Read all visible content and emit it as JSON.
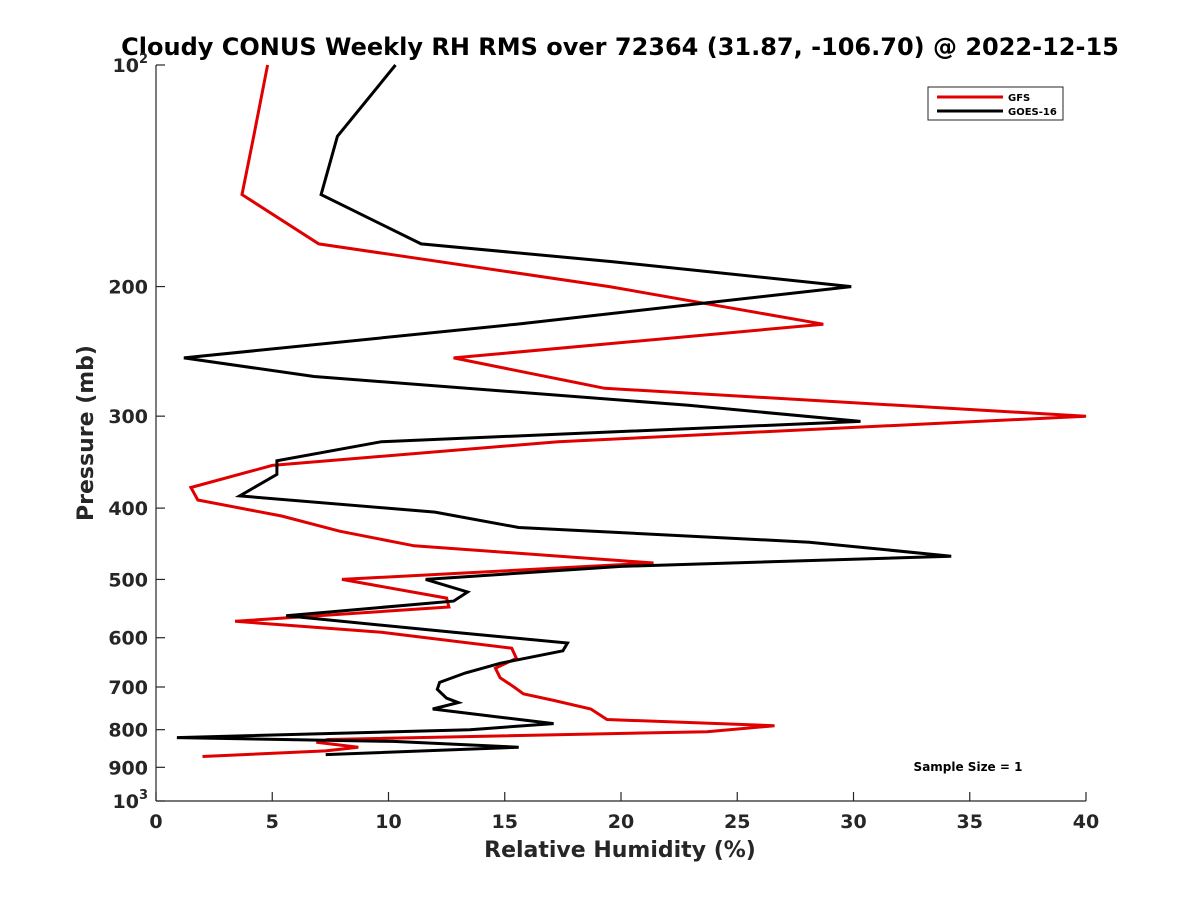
{
  "chart_data": {
    "type": "line",
    "title": "Cloudy CONUS Weekly RH RMS over 72364 (31.87, -106.70) @ 2022-12-15",
    "xlabel": "Relative Humidity (%)",
    "ylabel": "Pressure (mb)",
    "xlim": [
      0,
      40
    ],
    "ylim": [
      100,
      1000
    ],
    "yscale": "log",
    "y_reversed": true,
    "grid": false,
    "legend_position": "top-right",
    "x_ticks": [
      "0",
      "5",
      "10",
      "15",
      "20",
      "25",
      "30",
      "35",
      "40"
    ],
    "y_ticks": [
      {
        "value": 100,
        "base": "10",
        "exp": "2"
      },
      {
        "value": 200,
        "label": "200"
      },
      {
        "value": 300,
        "label": "300"
      },
      {
        "value": 400,
        "label": "400"
      },
      {
        "value": 500,
        "label": "500"
      },
      {
        "value": 600,
        "label": "600"
      },
      {
        "value": 700,
        "label": "700"
      },
      {
        "value": 800,
        "label": "800"
      },
      {
        "value": 900,
        "label": "900"
      },
      {
        "value": 1000,
        "base": "10",
        "exp": "3"
      }
    ],
    "annotation": "Sample Size = 1",
    "series": [
      {
        "name": "GFS",
        "color": "#e00000",
        "points": [
          [
            4.8,
            100
          ],
          [
            4.2,
            125
          ],
          [
            3.7,
            150
          ],
          [
            7.0,
            175
          ],
          [
            19.5,
            200
          ],
          [
            28.7,
            225
          ],
          [
            12.8,
            250
          ],
          [
            19.3,
            275
          ],
          [
            40.0,
            300
          ],
          [
            17.3,
            325
          ],
          [
            5.0,
            350
          ],
          [
            1.5,
            375
          ],
          [
            1.8,
            390
          ],
          [
            5.4,
            410
          ],
          [
            7.9,
            430
          ],
          [
            11.1,
            450
          ],
          [
            21.4,
            475
          ],
          [
            8.0,
            500
          ],
          [
            12.5,
            530
          ],
          [
            12.6,
            545
          ],
          [
            3.4,
            570
          ],
          [
            9.7,
            590
          ],
          [
            15.3,
            620
          ],
          [
            15.5,
            640
          ],
          [
            14.6,
            660
          ],
          [
            14.8,
            680
          ],
          [
            15.4,
            700
          ],
          [
            15.8,
            715
          ],
          [
            17.1,
            730
          ],
          [
            18.7,
            750
          ],
          [
            19.4,
            775
          ],
          [
            26.6,
            790
          ],
          [
            23.7,
            805
          ],
          [
            7.4,
            825
          ],
          [
            6.9,
            832
          ],
          [
            8.7,
            845
          ],
          [
            7.3,
            855
          ],
          [
            2.0,
            870
          ]
        ]
      },
      {
        "name": "GOES-16",
        "color": "#000000",
        "points": [
          [
            10.3,
            100
          ],
          [
            7.8,
            125
          ],
          [
            7.1,
            150
          ],
          [
            11.4,
            175
          ],
          [
            19.6,
            185
          ],
          [
            29.9,
            200
          ],
          [
            15.5,
            225
          ],
          [
            1.2,
            250
          ],
          [
            6.8,
            265
          ],
          [
            22.9,
            290
          ],
          [
            30.3,
            305
          ],
          [
            9.7,
            325
          ],
          [
            5.2,
            345
          ],
          [
            5.2,
            360
          ],
          [
            3.6,
            385
          ],
          [
            12.0,
            405
          ],
          [
            15.6,
            425
          ],
          [
            28.1,
            445
          ],
          [
            34.2,
            465
          ],
          [
            20.0,
            480
          ],
          [
            11.6,
            500
          ],
          [
            13.4,
            520
          ],
          [
            12.8,
            535
          ],
          [
            5.6,
            560
          ],
          [
            12.8,
            590
          ],
          [
            17.7,
            610
          ],
          [
            17.5,
            625
          ],
          [
            14.8,
            650
          ],
          [
            13.3,
            670
          ],
          [
            12.2,
            690
          ],
          [
            12.1,
            705
          ],
          [
            12.5,
            725
          ],
          [
            13.0,
            735
          ],
          [
            11.9,
            750
          ],
          [
            14.9,
            770
          ],
          [
            17.1,
            785
          ],
          [
            13.5,
            800
          ],
          [
            0.9,
            820
          ],
          [
            10.2,
            830
          ],
          [
            15.6,
            845
          ],
          [
            7.3,
            865
          ]
        ]
      }
    ]
  }
}
